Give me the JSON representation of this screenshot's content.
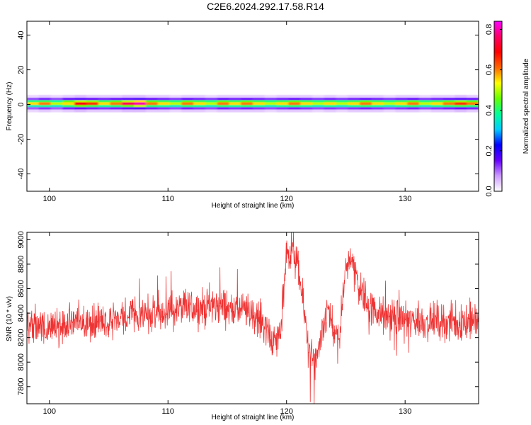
{
  "title": "C2E6.2024.292.17.58.R14",
  "chart_data": [
    {
      "type": "heatmap",
      "xlabel": "Height of straight line (km)",
      "ylabel": "Frequency (Hz)",
      "xlim": [
        98.1,
        136.2
      ],
      "ylim": [
        -50,
        48
      ],
      "xticks": [
        100,
        110,
        120,
        130
      ],
      "yticks": [
        40,
        20,
        0,
        -20,
        -40
      ],
      "band": {
        "center_freq": 0.5,
        "rows": [
          {
            "freq_offset": 0,
            "amplitude": [
              0.55,
              0.6,
              0.5,
              0.55,
              0.7,
              0.65,
              0.55,
              0.6,
              0.75,
              0.8,
              0.6,
              0.55,
              0.5,
              0.6,
              0.55,
              0.5,
              0.6,
              0.55,
              0.6,
              0.55,
              0.5,
              0.55,
              0.6,
              0.55,
              0.5,
              0.55,
              0.5,
              0.55,
              0.6,
              0.55,
              0.5,
              0.55,
              0.6,
              0.5,
              0.55,
              0.6,
              0.65,
              0.6
            ]
          },
          {
            "freq_offset": 1.2,
            "amplitude": [
              0.4,
              0.42,
              0.38,
              0.45,
              0.5,
              0.48,
              0.42,
              0.45,
              0.5,
              0.55,
              0.45,
              0.42,
              0.4,
              0.45,
              0.42,
              0.4,
              0.45,
              0.42,
              0.45,
              0.42,
              0.4,
              0.42,
              0.45,
              0.42,
              0.4,
              0.42,
              0.4,
              0.42,
              0.45,
              0.42,
              0.4,
              0.42,
              0.45,
              0.4,
              0.42,
              0.45,
              0.48,
              0.45
            ]
          },
          {
            "freq_offset": -1.2,
            "amplitude": [
              0.35,
              0.38,
              0.34,
              0.4,
              0.45,
              0.42,
              0.38,
              0.4,
              0.45,
              0.5,
              0.4,
              0.38,
              0.35,
              0.4,
              0.38,
              0.35,
              0.4,
              0.38,
              0.4,
              0.38,
              0.35,
              0.38,
              0.4,
              0.38,
              0.35,
              0.38,
              0.35,
              0.38,
              0.4,
              0.38,
              0.35,
              0.38,
              0.4,
              0.35,
              0.38,
              0.4,
              0.42,
              0.4
            ]
          },
          {
            "freq_offset": 2.6,
            "amplitude": [
              0.12,
              0.14,
              0.12,
              0.15,
              0.16,
              0.15,
              0.14,
              0.15,
              0.16,
              0.17,
              0.15,
              0.14,
              0.13,
              0.15,
              0.14,
              0.13,
              0.15,
              0.14,
              0.15,
              0.14,
              0.13,
              0.14,
              0.15,
              0.14,
              0.13,
              0.14,
              0.13,
              0.14,
              0.15,
              0.14,
              0.13,
              0.14,
              0.15,
              0.13,
              0.14,
              0.15,
              0.16,
              0.15
            ]
          },
          {
            "freq_offset": -2.6,
            "amplitude": [
              0.11,
              0.13,
              0.11,
              0.14,
              0.15,
              0.14,
              0.13,
              0.14,
              0.15,
              0.16,
              0.14,
              0.13,
              0.12,
              0.14,
              0.13,
              0.12,
              0.14,
              0.13,
              0.14,
              0.13,
              0.12,
              0.13,
              0.14,
              0.13,
              0.12,
              0.13,
              0.12,
              0.13,
              0.14,
              0.13,
              0.12,
              0.13,
              0.14,
              0.12,
              0.13,
              0.14,
              0.15,
              0.14
            ]
          },
          {
            "freq_offset": 4.2,
            "amplitude": [
              0.03,
              0.04,
              0.03,
              0.04,
              0.05,
              0.04,
              0.04,
              0.04,
              0.05,
              0.05,
              0.04,
              0.04,
              0.03,
              0.04,
              0.04,
              0.03,
              0.04,
              0.04,
              0.04,
              0.04,
              0.03,
              0.04,
              0.04,
              0.04,
              0.03,
              0.04,
              0.03,
              0.04,
              0.04,
              0.04,
              0.03,
              0.04,
              0.04,
              0.03,
              0.04,
              0.04,
              0.05,
              0.04
            ]
          },
          {
            "freq_offset": -4.2,
            "amplitude": [
              0.03,
              0.04,
              0.03,
              0.04,
              0.05,
              0.04,
              0.04,
              0.04,
              0.05,
              0.05,
              0.04,
              0.04,
              0.03,
              0.04,
              0.04,
              0.03,
              0.04,
              0.04,
              0.04,
              0.04,
              0.03,
              0.04,
              0.04,
              0.04,
              0.03,
              0.04,
              0.03,
              0.04,
              0.04,
              0.04,
              0.03,
              0.04,
              0.04,
              0.03,
              0.04,
              0.04,
              0.05,
              0.04
            ]
          }
        ]
      },
      "colorbar": {
        "label": "Normalized spectral amplitude",
        "range": [
          0.0,
          0.84
        ],
        "ticks": [
          "0.0",
          "0.2",
          "0.4",
          "0.6",
          "0.8"
        ],
        "colors": [
          "#ffffff",
          "#cc99ff",
          "#6600ff",
          "#0000ff",
          "#00ccff",
          "#00ff99",
          "#66ff00",
          "#ffff00",
          "#ff6600",
          "#ff0000",
          "#ff0066",
          "#ff00ff"
        ]
      }
    },
    {
      "type": "line",
      "xlabel": "Height of straight line (km)",
      "ylabel": "SNR (10 * v/v)",
      "xlim": [
        98.1,
        136.2
      ],
      "ylim": [
        7660,
        9060
      ],
      "xticks": [
        100,
        110,
        120,
        130
      ],
      "yticks": [
        7800,
        8000,
        8200,
        8400,
        8600,
        8800,
        9000
      ],
      "color": "#ee3333",
      "series": [
        {
          "x": [
            98.1,
            99,
            100,
            101,
            102,
            103,
            104,
            105,
            106,
            107,
            108,
            109,
            110,
            111,
            112,
            113,
            114,
            115,
            116,
            117,
            118,
            118.5,
            119,
            119.5,
            120,
            120.5,
            121,
            121.5,
            122,
            122.5,
            123,
            123.5,
            124,
            124.5,
            125,
            125.5,
            126,
            127,
            128,
            129,
            130,
            131,
            132,
            133,
            134,
            135,
            136.2
          ],
          "values": [
            8320,
            8300,
            8280,
            8300,
            8320,
            8330,
            8340,
            8330,
            8360,
            8380,
            8390,
            8410,
            8420,
            8440,
            8450,
            8440,
            8460,
            8450,
            8430,
            8400,
            8330,
            8250,
            8150,
            8250,
            8850,
            8920,
            8750,
            8400,
            8050,
            7980,
            8200,
            8450,
            8200,
            8250,
            8700,
            8900,
            8650,
            8450,
            8380,
            8360,
            8350,
            8330,
            8330,
            8340,
            8320,
            8330,
            8340
          ]
        }
      ]
    }
  ]
}
